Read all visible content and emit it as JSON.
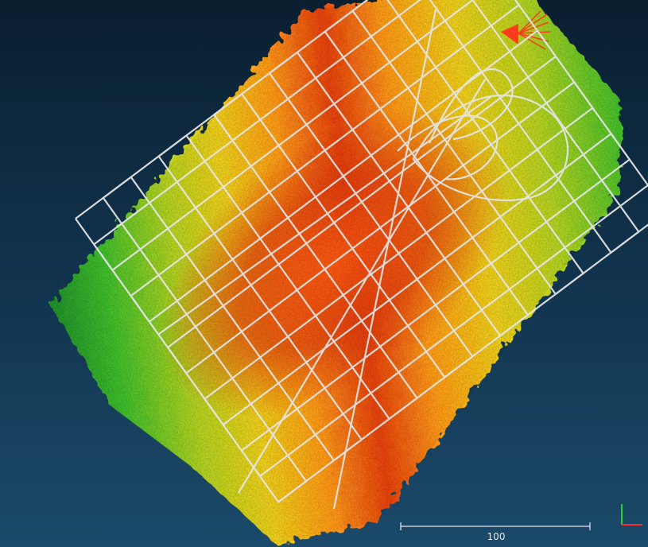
{
  "viewer": {
    "background_top": "#0a1f30",
    "background_bottom": "#1b4a6a",
    "colormap": [
      "#1f8f2a",
      "#3fbf2b",
      "#b5d321",
      "#f0d01a",
      "#ff9a17",
      "#ff5a10",
      "#d8300c"
    ],
    "flight_path_color": "#e6e6e6",
    "camera_marker_color": "#ff3b1e"
  },
  "scale_bar": {
    "label": "100"
  },
  "axis_gizmo": {
    "x_axis_color": "#ff2a2a",
    "y_axis_color": "#2ad12a"
  }
}
